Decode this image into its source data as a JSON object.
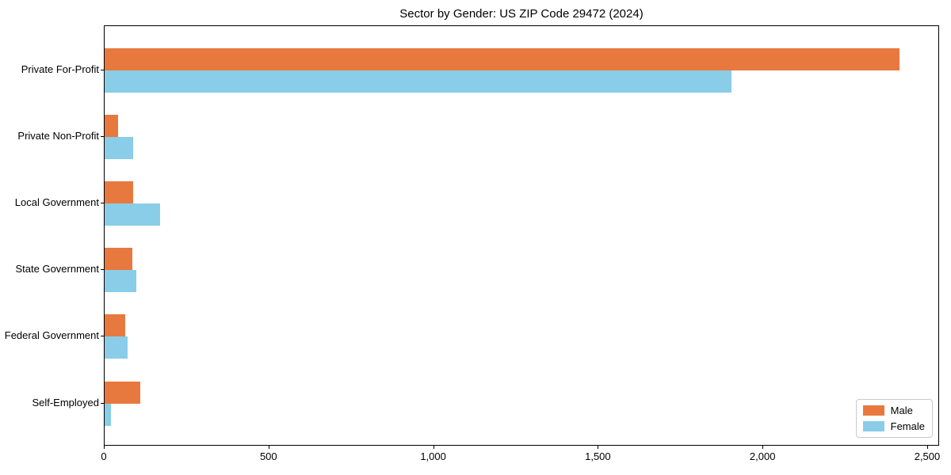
{
  "chart_data": {
    "type": "bar",
    "orientation": "horizontal",
    "title": "Sector by Gender: US ZIP Code 29472 (2024)",
    "categories": [
      "Private For-Profit",
      "Private Non-Profit",
      "Local Government",
      "State Government",
      "Federal Government",
      "Self-Employed"
    ],
    "series": [
      {
        "name": "Male",
        "color": "#e8793e",
        "values": [
          2414,
          40,
          87,
          85,
          63,
          108
        ]
      },
      {
        "name": "Female",
        "color": "#89cde8",
        "values": [
          1903,
          87,
          168,
          95,
          70,
          18
        ]
      }
    ],
    "xlabel": "",
    "ylabel": "",
    "xlim": [
      0,
      2536
    ],
    "xticks": [
      0,
      500,
      1000,
      1500,
      2000,
      2500
    ],
    "xtick_labels": [
      "0",
      "500",
      "1,000",
      "1,500",
      "2,000",
      "2,500"
    ],
    "grid": false,
    "legend": {
      "position": "lower right",
      "entries": [
        {
          "label": "Male",
          "color": "#e8793e"
        },
        {
          "label": "Female",
          "color": "#89cde8"
        }
      ]
    }
  }
}
